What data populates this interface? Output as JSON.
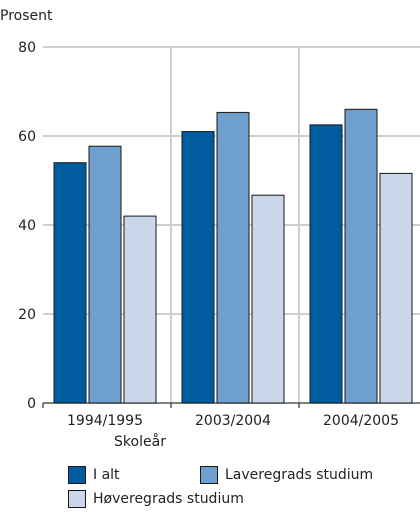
{
  "chart_data": {
    "type": "bar",
    "ylabel": "Prosent",
    "xlabel": "Skoleår",
    "categories": [
      "1994/1995",
      "2003/2004",
      "2004/2005"
    ],
    "ylim": [
      0,
      80
    ],
    "yticks": [
      0,
      20,
      40,
      60,
      80
    ],
    "grid": true,
    "legend_position": "bottom",
    "series": [
      {
        "name": "I alt",
        "values": [
          54,
          61,
          62.5
        ],
        "color": "#005b9f"
      },
      {
        "name": "Laveregrads studium",
        "values": [
          57.7,
          65.3,
          66
        ],
        "color": "#6f9fcc"
      },
      {
        "name": "Høveregrads studium",
        "values": [
          42,
          46.7,
          51.6
        ],
        "color": "#cad7ea"
      }
    ]
  }
}
